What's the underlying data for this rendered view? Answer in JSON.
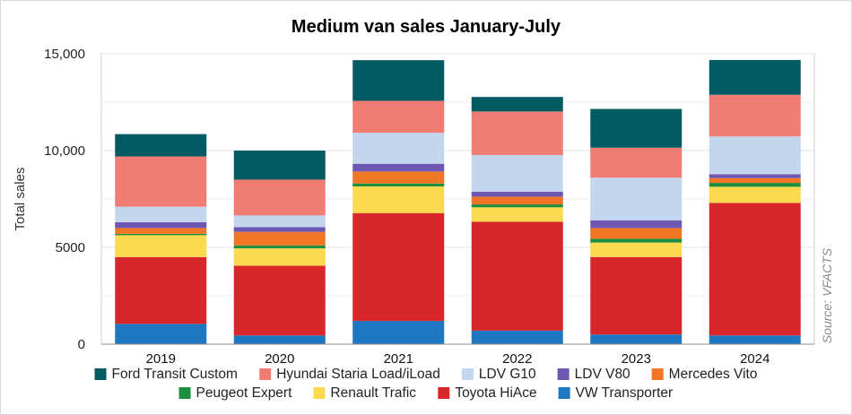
{
  "chart_data": {
    "type": "bar",
    "stacked": true,
    "title": "Medium van sales January-July",
    "ylabel": "Total sales",
    "xlabel": "",
    "source_note": "Source: VFACTS",
    "ylim": [
      0,
      15000
    ],
    "yticks": [
      {
        "value": 0,
        "label": "0"
      },
      {
        "value": 5000,
        "label": "5000"
      },
      {
        "value": 10000,
        "label": "10,000"
      },
      {
        "value": 15000,
        "label": "15,000"
      }
    ],
    "grid": true,
    "legend_position": "bottom",
    "categories": [
      "2019",
      "2020",
      "2021",
      "2022",
      "2023",
      "2024"
    ],
    "series": [
      {
        "name": "VW Transporter",
        "color": "#1f77c1",
        "values": [
          1050,
          450,
          1200,
          700,
          500,
          450
        ]
      },
      {
        "name": "Toyota HiAce",
        "color": "#d9262b",
        "values": [
          3450,
          3600,
          5570,
          5620,
          4000,
          6850
        ]
      },
      {
        "name": "Renault Trafic",
        "color": "#fcd94e",
        "values": [
          1130,
          900,
          1380,
          750,
          750,
          830
        ]
      },
      {
        "name": "Peugeot Expert",
        "color": "#1e8f3e",
        "values": [
          70,
          150,
          150,
          150,
          200,
          200
        ]
      },
      {
        "name": "Mercedes Vito",
        "color": "#f07524",
        "values": [
          300,
          700,
          620,
          400,
          550,
          250
        ]
      },
      {
        "name": "LDV V80",
        "color": "#6e57b2",
        "values": [
          300,
          250,
          400,
          250,
          400,
          200
        ]
      },
      {
        "name": "LDV G10",
        "color": "#c2d7ee",
        "values": [
          800,
          600,
          1600,
          1900,
          2200,
          1950
        ]
      },
      {
        "name": "Hyundai Staria Load/iLoad",
        "color": "#f07c74",
        "values": [
          2600,
          1850,
          1650,
          2250,
          1550,
          2150
        ]
      },
      {
        "name": "Ford Transit Custom",
        "color": "#025b62",
        "values": [
          1150,
          1500,
          2100,
          750,
          2000,
          1800
        ]
      }
    ],
    "legend_order": [
      "Ford Transit Custom",
      "Hyundai Staria Load/iLoad",
      "LDV G10",
      "LDV V80",
      "Mercedes Vito",
      "Peugeot Expert",
      "Renault Trafic",
      "Toyota HiAce",
      "VW Transporter"
    ]
  }
}
